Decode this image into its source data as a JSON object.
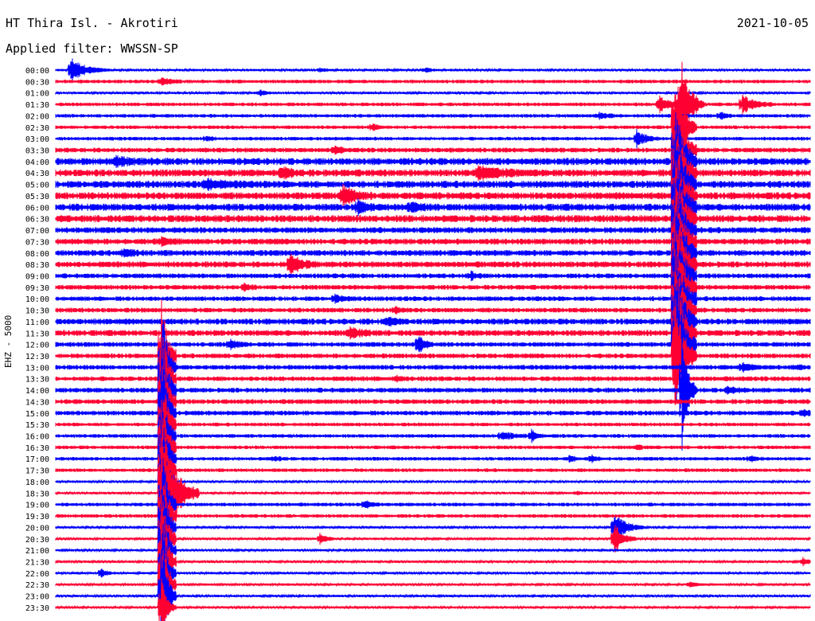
{
  "header": {
    "station": "HT Thira Isl. - Akrotiri",
    "filter_text": "Applied filter: WWSSN-SP",
    "date": "2021-10-05"
  },
  "channel_label": "EHZ - 5000",
  "colors": {
    "even_rows": "#0000ff",
    "odd_rows": "#ff0033",
    "text": "#000000"
  },
  "chart_data": {
    "type": "helicorder",
    "title": "HT Thira Isl. - Akrotiri",
    "subtitle": "Applied filter: WWSSN-SP",
    "date": "2021-10-05",
    "ylabel": "EHZ - 5000",
    "rows_interval_minutes": 30,
    "tick_labels": [
      "00:00",
      "00:30",
      "01:00",
      "01:30",
      "02:00",
      "02:30",
      "03:00",
      "03:30",
      "04:00",
      "04:30",
      "05:00",
      "05:30",
      "06:00",
      "06:30",
      "07:00",
      "07:30",
      "08:00",
      "08:30",
      "09:00",
      "09:30",
      "10:00",
      "10:30",
      "11:00",
      "11:30",
      "12:00",
      "12:30",
      "13:00",
      "13:30",
      "14:00",
      "14:30",
      "15:00",
      "15:30",
      "16:00",
      "16:30",
      "17:00",
      "17:30",
      "18:00",
      "18:30",
      "19:00",
      "19:30",
      "20:00",
      "20:30",
      "21:00",
      "21:30",
      "22:00",
      "22:30",
      "23:00",
      "23:30"
    ],
    "series": [
      {
        "row": 0,
        "noise": 1.0,
        "events": [
          {
            "t": 0.02,
            "amp": 16,
            "dur": 0.05
          },
          {
            "t": 0.35,
            "amp": 3,
            "dur": 0.02
          },
          {
            "t": 0.49,
            "amp": 3,
            "dur": 0.02
          }
        ]
      },
      {
        "row": 1,
        "noise": 1.5,
        "events": [
          {
            "t": 0.14,
            "amp": 5,
            "dur": 0.03
          }
        ]
      },
      {
        "row": 2,
        "noise": 1.0,
        "events": [
          {
            "t": 0.27,
            "amp": 4,
            "dur": 0.02
          }
        ]
      },
      {
        "row": 3,
        "noise": 1.5,
        "events": [
          {
            "t": 0.8,
            "amp": 12,
            "dur": 0.03
          },
          {
            "t": 0.83,
            "amp": 60,
            "dur": 0.03
          },
          {
            "t": 0.91,
            "amp": 12,
            "dur": 0.04
          }
        ]
      },
      {
        "row": 4,
        "noise": 1.5,
        "events": [
          {
            "t": 0.72,
            "amp": 4,
            "dur": 0.03
          },
          {
            "t": 0.88,
            "amp": 5,
            "dur": 0.02
          }
        ]
      },
      {
        "row": 5,
        "noise": 1.5,
        "events": [
          {
            "t": 0.42,
            "amp": 5,
            "dur": 0.02
          },
          {
            "t": 0.82,
            "amp": 80,
            "dur": 0.03
          }
        ]
      },
      {
        "row": 6,
        "noise": 1.5,
        "events": [
          {
            "t": 0.77,
            "amp": 12,
            "dur": 0.03
          },
          {
            "t": 0.2,
            "amp": 3,
            "dur": 0.02
          }
        ]
      },
      {
        "row": 7,
        "noise": 2.0,
        "events": [
          {
            "t": 0.37,
            "amp": 5,
            "dur": 0.02
          },
          {
            "t": 0.82,
            "amp": 90,
            "dur": 0.03
          }
        ]
      },
      {
        "row": 8,
        "noise": 3.0,
        "events": [
          {
            "t": 0.08,
            "amp": 5,
            "dur": 0.05
          },
          {
            "t": 0.82,
            "amp": 90,
            "dur": 0.03
          }
        ]
      },
      {
        "row": 9,
        "noise": 3.0,
        "events": [
          {
            "t": 0.3,
            "amp": 8,
            "dur": 0.03
          },
          {
            "t": 0.56,
            "amp": 8,
            "dur": 0.08
          },
          {
            "t": 0.82,
            "amp": 90,
            "dur": 0.03
          }
        ]
      },
      {
        "row": 10,
        "noise": 3.0,
        "events": [
          {
            "t": 0.2,
            "amp": 5,
            "dur": 0.08
          },
          {
            "t": 0.82,
            "amp": 90,
            "dur": 0.03
          }
        ]
      },
      {
        "row": 11,
        "noise": 3.0,
        "events": [
          {
            "t": 0.38,
            "amp": 14,
            "dur": 0.04
          },
          {
            "t": 0.82,
            "amp": 90,
            "dur": 0.03
          }
        ]
      },
      {
        "row": 12,
        "noise": 3.0,
        "events": [
          {
            "t": 0.4,
            "amp": 8,
            "dur": 0.03
          },
          {
            "t": 0.47,
            "amp": 5,
            "dur": 0.04
          },
          {
            "t": 0.82,
            "amp": 90,
            "dur": 0.03
          }
        ]
      },
      {
        "row": 13,
        "noise": 3.0,
        "events": [
          {
            "t": 0.82,
            "amp": 90,
            "dur": 0.03
          }
        ]
      },
      {
        "row": 14,
        "noise": 2.5,
        "events": [
          {
            "t": 0.82,
            "amp": 90,
            "dur": 0.03
          }
        ]
      },
      {
        "row": 15,
        "noise": 2.5,
        "events": [
          {
            "t": 0.14,
            "amp": 4,
            "dur": 0.03
          },
          {
            "t": 0.82,
            "amp": 90,
            "dur": 0.03
          }
        ]
      },
      {
        "row": 16,
        "noise": 2.5,
        "events": [
          {
            "t": 0.09,
            "amp": 4,
            "dur": 0.04
          },
          {
            "t": 0.82,
            "amp": 90,
            "dur": 0.03
          }
        ]
      },
      {
        "row": 17,
        "noise": 2.5,
        "events": [
          {
            "t": 0.31,
            "amp": 14,
            "dur": 0.04
          },
          {
            "t": 0.82,
            "amp": 90,
            "dur": 0.03
          }
        ]
      },
      {
        "row": 18,
        "noise": 2.0,
        "events": [
          {
            "t": 0.55,
            "amp": 5,
            "dur": 0.02
          },
          {
            "t": 0.82,
            "amp": 90,
            "dur": 0.03
          }
        ]
      },
      {
        "row": 19,
        "noise": 2.0,
        "events": [
          {
            "t": 0.25,
            "amp": 4,
            "dur": 0.02
          },
          {
            "t": 0.82,
            "amp": 90,
            "dur": 0.03
          }
        ]
      },
      {
        "row": 20,
        "noise": 2.0,
        "events": [
          {
            "t": 0.37,
            "amp": 4,
            "dur": 0.03
          },
          {
            "t": 0.82,
            "amp": 90,
            "dur": 0.03
          }
        ]
      },
      {
        "row": 21,
        "noise": 2.0,
        "events": [
          {
            "t": 0.45,
            "amp": 4,
            "dur": 0.02
          },
          {
            "t": 0.82,
            "amp": 90,
            "dur": 0.03
          }
        ]
      },
      {
        "row": 22,
        "noise": 2.5,
        "events": [
          {
            "t": 0.44,
            "amp": 5,
            "dur": 0.03
          },
          {
            "t": 0.82,
            "amp": 90,
            "dur": 0.03
          }
        ]
      },
      {
        "row": 23,
        "noise": 2.5,
        "events": [
          {
            "t": 0.39,
            "amp": 6,
            "dur": 0.04
          },
          {
            "t": 0.82,
            "amp": 90,
            "dur": 0.03
          }
        ]
      },
      {
        "row": 24,
        "noise": 2.0,
        "events": [
          {
            "t": 0.23,
            "amp": 6,
            "dur": 0.03
          },
          {
            "t": 0.48,
            "amp": 14,
            "dur": 0.02
          },
          {
            "t": 0.82,
            "amp": 90,
            "dur": 0.03
          }
        ]
      },
      {
        "row": 25,
        "noise": 2.0,
        "events": [
          {
            "t": 0.14,
            "amp": 90,
            "dur": 0.02
          },
          {
            "t": 0.82,
            "amp": 90,
            "dur": 0.03
          }
        ]
      },
      {
        "row": 26,
        "noise": 2.0,
        "events": [
          {
            "t": 0.14,
            "amp": 90,
            "dur": 0.02
          },
          {
            "t": 0.91,
            "amp": 5,
            "dur": 0.03
          },
          {
            "t": 0.98,
            "amp": 3,
            "dur": 0.02
          }
        ]
      },
      {
        "row": 27,
        "noise": 2.0,
        "events": [
          {
            "t": 0.14,
            "amp": 90,
            "dur": 0.02
          },
          {
            "t": 0.45,
            "amp": 3,
            "dur": 0.02
          }
        ]
      },
      {
        "row": 28,
        "noise": 2.0,
        "events": [
          {
            "t": 0.14,
            "amp": 90,
            "dur": 0.02
          },
          {
            "t": 0.83,
            "amp": 80,
            "dur": 0.02
          },
          {
            "t": 0.89,
            "amp": 4,
            "dur": 0.04
          }
        ]
      },
      {
        "row": 29,
        "noise": 2.0,
        "events": [
          {
            "t": 0.14,
            "amp": 90,
            "dur": 0.02
          }
        ]
      },
      {
        "row": 30,
        "noise": 2.0,
        "events": [
          {
            "t": 0.14,
            "amp": 90,
            "dur": 0.02
          },
          {
            "t": 0.99,
            "amp": 4,
            "dur": 0.02
          }
        ]
      },
      {
        "row": 31,
        "noise": 1.5,
        "events": [
          {
            "t": 0.14,
            "amp": 90,
            "dur": 0.02
          }
        ]
      },
      {
        "row": 32,
        "noise": 1.5,
        "events": [
          {
            "t": 0.14,
            "amp": 90,
            "dur": 0.02
          },
          {
            "t": 0.59,
            "amp": 6,
            "dur": 0.04
          },
          {
            "t": 0.63,
            "amp": 8,
            "dur": 0.02
          }
        ]
      },
      {
        "row": 33,
        "noise": 1.5,
        "events": [
          {
            "t": 0.14,
            "amp": 90,
            "dur": 0.02
          },
          {
            "t": 0.77,
            "amp": 3,
            "dur": 0.02
          }
        ]
      },
      {
        "row": 34,
        "noise": 1.5,
        "events": [
          {
            "t": 0.14,
            "amp": 90,
            "dur": 0.02
          },
          {
            "t": 0.29,
            "amp": 3,
            "dur": 0.02
          },
          {
            "t": 0.68,
            "amp": 4,
            "dur": 0.02
          },
          {
            "t": 0.71,
            "amp": 5,
            "dur": 0.02
          },
          {
            "t": 0.92,
            "amp": 4,
            "dur": 0.02
          }
        ]
      },
      {
        "row": 35,
        "noise": 1.5,
        "events": [
          {
            "t": 0.14,
            "amp": 90,
            "dur": 0.02
          }
        ]
      },
      {
        "row": 36,
        "noise": 1.0,
        "events": [
          {
            "t": 0.14,
            "amp": 90,
            "dur": 0.02
          }
        ]
      },
      {
        "row": 37,
        "noise": 1.0,
        "events": [
          {
            "t": 0.14,
            "amp": 90,
            "dur": 0.05
          },
          {
            "t": 0.69,
            "amp": 3,
            "dur": 0.02
          }
        ]
      },
      {
        "row": 38,
        "noise": 1.5,
        "events": [
          {
            "t": 0.14,
            "amp": 90,
            "dur": 0.02
          },
          {
            "t": 0.41,
            "amp": 6,
            "dur": 0.02
          }
        ]
      },
      {
        "row": 39,
        "noise": 1.5,
        "events": [
          {
            "t": 0.14,
            "amp": 90,
            "dur": 0.02
          }
        ]
      },
      {
        "row": 40,
        "noise": 1.0,
        "events": [
          {
            "t": 0.14,
            "amp": 90,
            "dur": 0.02
          },
          {
            "t": 0.74,
            "amp": 20,
            "dur": 0.04
          }
        ]
      },
      {
        "row": 41,
        "noise": 1.0,
        "events": [
          {
            "t": 0.14,
            "amp": 90,
            "dur": 0.02
          },
          {
            "t": 0.35,
            "amp": 8,
            "dur": 0.02
          },
          {
            "t": 0.74,
            "amp": 20,
            "dur": 0.03
          }
        ]
      },
      {
        "row": 42,
        "noise": 1.0,
        "events": [
          {
            "t": 0.14,
            "amp": 90,
            "dur": 0.02
          }
        ]
      },
      {
        "row": 43,
        "noise": 1.0,
        "events": [
          {
            "t": 0.14,
            "amp": 90,
            "dur": 0.02
          },
          {
            "t": 0.99,
            "amp": 5,
            "dur": 0.02
          }
        ]
      },
      {
        "row": 44,
        "noise": 1.0,
        "events": [
          {
            "t": 0.14,
            "amp": 90,
            "dur": 0.02
          },
          {
            "t": 0.06,
            "amp": 6,
            "dur": 0.02
          }
        ]
      },
      {
        "row": 45,
        "noise": 1.0,
        "events": [
          {
            "t": 0.14,
            "amp": 90,
            "dur": 0.02
          },
          {
            "t": 0.84,
            "amp": 4,
            "dur": 0.02
          }
        ]
      },
      {
        "row": 46,
        "noise": 1.0,
        "events": [
          {
            "t": 0.14,
            "amp": 90,
            "dur": 0.02
          }
        ]
      },
      {
        "row": 47,
        "noise": 1.0,
        "events": [
          {
            "t": 0.14,
            "amp": 40,
            "dur": 0.02
          }
        ]
      }
    ]
  }
}
